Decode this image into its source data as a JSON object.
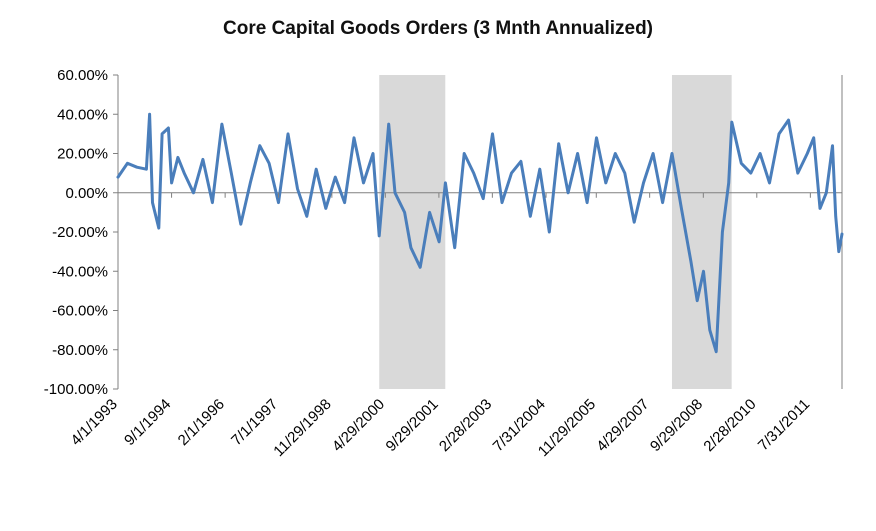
{
  "chart_data": {
    "type": "line",
    "title": "Core Capital Goods Orders (3 Mnth Annualized)",
    "xlabel": "",
    "ylabel": "",
    "ylim": [
      -100,
      60
    ],
    "y_ticks": [
      60,
      40,
      20,
      0,
      -20,
      -40,
      -60,
      -80,
      -100
    ],
    "y_tick_labels": [
      "60.00%",
      "40.00%",
      "20.00%",
      "0.00%",
      "-20.00%",
      "-40.00%",
      "-60.00%",
      "-80.00%",
      "-100.00%"
    ],
    "x_range": [
      "1993-04-01",
      "2012-06-01"
    ],
    "x_tick_labels": [
      "4/1/1993",
      "9/1/1994",
      "2/1/1996",
      "7/1/1997",
      "11/29/1998",
      "4/29/2000",
      "9/29/2001",
      "2/28/2003",
      "7/31/2004",
      "11/29/2005",
      "4/29/2007",
      "9/29/2008",
      "2/28/2010",
      "7/31/2011"
    ],
    "x_tick_dates": [
      "1993-04-01",
      "1994-09-01",
      "1996-02-01",
      "1997-07-01",
      "1998-11-29",
      "2000-04-29",
      "2001-09-29",
      "2003-02-28",
      "2004-07-31",
      "2005-11-29",
      "2007-04-29",
      "2008-09-29",
      "2010-02-28",
      "2011-07-31"
    ],
    "recessions": [
      {
        "start": "2000-03-01",
        "end": "2001-11-30"
      },
      {
        "start": "2007-12-01",
        "end": "2009-06-30"
      }
    ],
    "grid": false,
    "line_color": "#4a7ebb",
    "recession_color": "#d9d9d9",
    "series": [
      {
        "values": [
          [
            "1993-04-01",
            8
          ],
          [
            "1993-07-01",
            15
          ],
          [
            "1993-10-01",
            13
          ],
          [
            "1994-01-01",
            12
          ],
          [
            "1994-02-01",
            40
          ],
          [
            "1994-03-01",
            -5
          ],
          [
            "1994-05-01",
            -18
          ],
          [
            "1994-06-01",
            30
          ],
          [
            "1994-08-01",
            33
          ],
          [
            "1994-09-01",
            5
          ],
          [
            "1994-11-01",
            18
          ],
          [
            "1995-01-01",
            10
          ],
          [
            "1995-04-01",
            0
          ],
          [
            "1995-07-01",
            17
          ],
          [
            "1995-10-01",
            -5
          ],
          [
            "1996-01-01",
            35
          ],
          [
            "1996-04-01",
            10
          ],
          [
            "1996-07-01",
            -16
          ],
          [
            "1996-10-01",
            5
          ],
          [
            "1997-01-01",
            24
          ],
          [
            "1997-04-01",
            15
          ],
          [
            "1997-07-01",
            -5
          ],
          [
            "1997-10-01",
            30
          ],
          [
            "1998-01-01",
            2
          ],
          [
            "1998-04-01",
            -12
          ],
          [
            "1998-07-01",
            12
          ],
          [
            "1998-10-01",
            -8
          ],
          [
            "1999-01-01",
            8
          ],
          [
            "1999-04-01",
            -5
          ],
          [
            "1999-07-01",
            28
          ],
          [
            "1999-10-01",
            5
          ],
          [
            "2000-01-01",
            20
          ],
          [
            "2000-03-01",
            -22
          ],
          [
            "2000-06-01",
            35
          ],
          [
            "2000-08-01",
            0
          ],
          [
            "2000-11-01",
            -10
          ],
          [
            "2001-01-01",
            -28
          ],
          [
            "2001-04-01",
            -38
          ],
          [
            "2001-07-01",
            -10
          ],
          [
            "2001-10-01",
            -25
          ],
          [
            "2001-12-01",
            5
          ],
          [
            "2002-03-01",
            -28
          ],
          [
            "2002-06-01",
            20
          ],
          [
            "2002-09-01",
            10
          ],
          [
            "2002-12-01",
            -3
          ],
          [
            "2003-03-01",
            30
          ],
          [
            "2003-06-01",
            -5
          ],
          [
            "2003-09-01",
            10
          ],
          [
            "2003-12-01",
            16
          ],
          [
            "2004-03-01",
            -12
          ],
          [
            "2004-06-01",
            12
          ],
          [
            "2004-09-01",
            -20
          ],
          [
            "2004-12-01",
            25
          ],
          [
            "2005-03-01",
            0
          ],
          [
            "2005-06-01",
            20
          ],
          [
            "2005-09-01",
            -5
          ],
          [
            "2005-12-01",
            28
          ],
          [
            "2006-03-01",
            5
          ],
          [
            "2006-06-01",
            20
          ],
          [
            "2006-09-01",
            10
          ],
          [
            "2006-12-01",
            -15
          ],
          [
            "2007-03-01",
            5
          ],
          [
            "2007-06-01",
            20
          ],
          [
            "2007-09-01",
            -5
          ],
          [
            "2007-12-01",
            20
          ],
          [
            "2008-03-01",
            -8
          ],
          [
            "2008-06-01",
            -35
          ],
          [
            "2008-08-01",
            -55
          ],
          [
            "2008-10-01",
            -40
          ],
          [
            "2008-12-01",
            -70
          ],
          [
            "2009-02-01",
            -81
          ],
          [
            "2009-04-01",
            -20
          ],
          [
            "2009-06-01",
            5
          ],
          [
            "2009-07-01",
            36
          ],
          [
            "2009-10-01",
            15
          ],
          [
            "2010-01-01",
            10
          ],
          [
            "2010-04-01",
            20
          ],
          [
            "2010-07-01",
            5
          ],
          [
            "2010-10-01",
            30
          ],
          [
            "2011-01-01",
            37
          ],
          [
            "2011-04-01",
            10
          ],
          [
            "2011-07-01",
            20
          ],
          [
            "2011-09-01",
            28
          ],
          [
            "2011-11-01",
            -8
          ],
          [
            "2012-01-01",
            0
          ],
          [
            "2012-03-01",
            24
          ],
          [
            "2012-04-01",
            -12
          ],
          [
            "2012-05-01",
            -30
          ],
          [
            "2012-06-01",
            -21
          ]
        ]
      }
    ]
  }
}
